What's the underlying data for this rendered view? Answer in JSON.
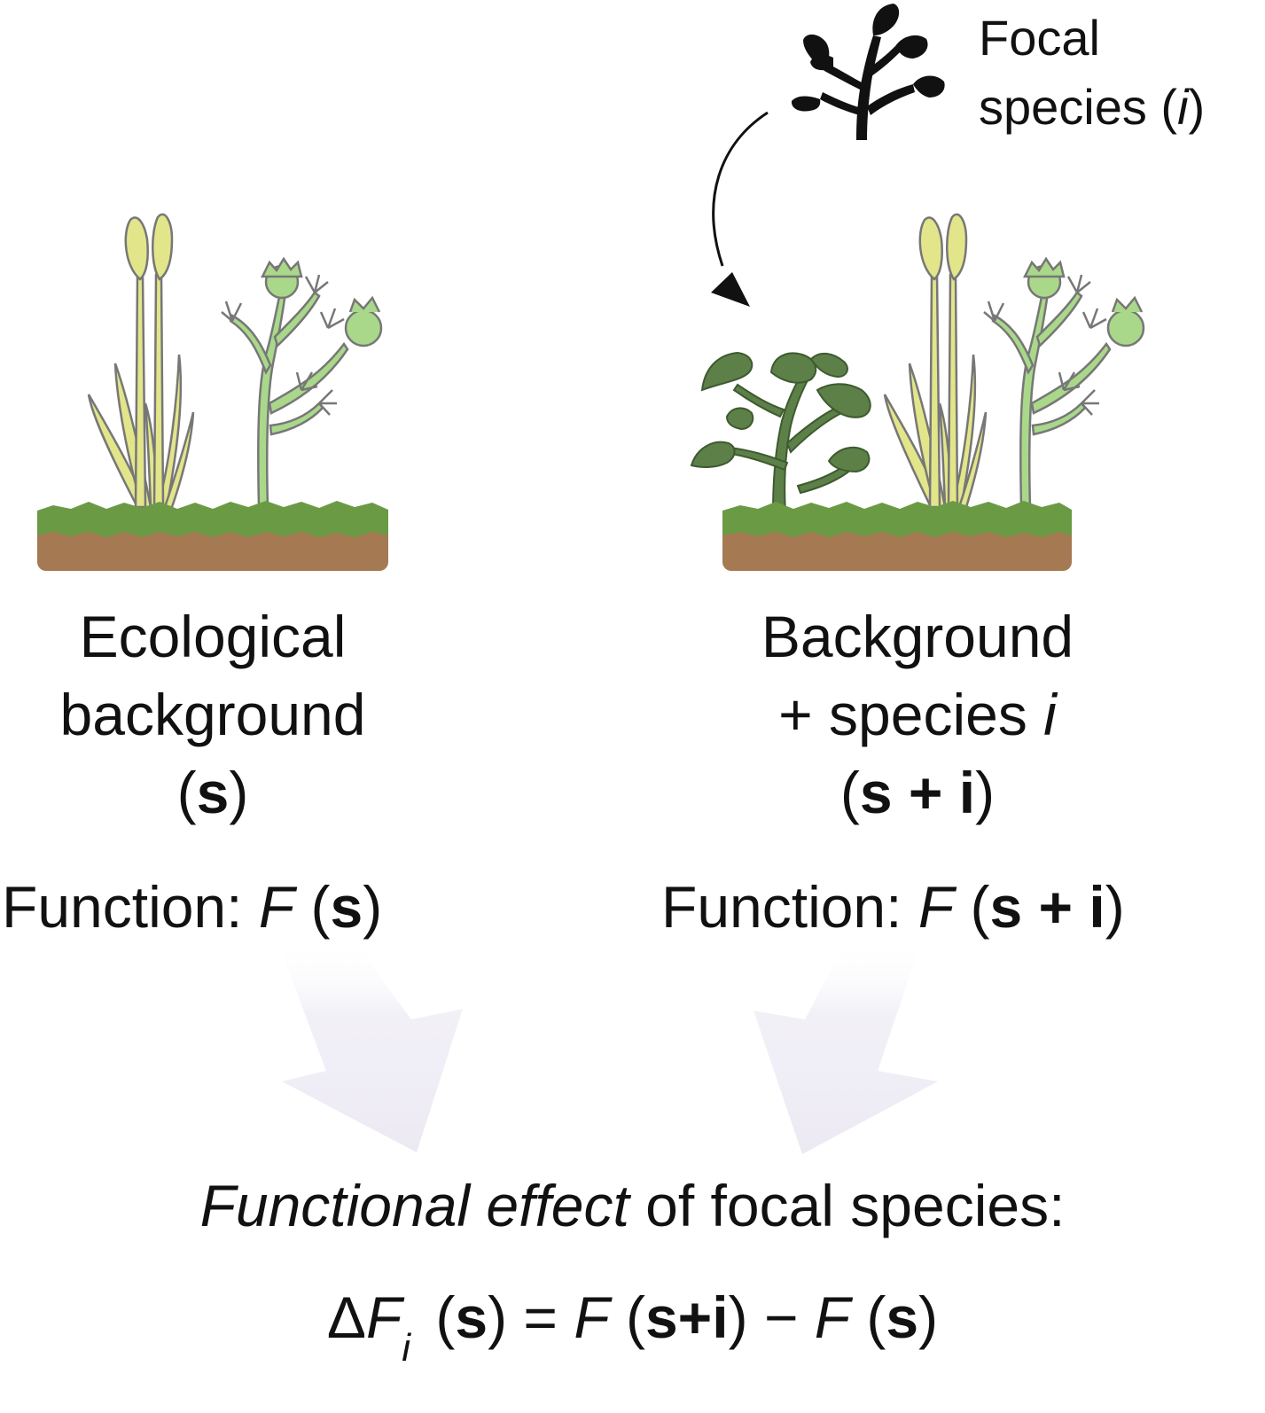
{
  "focal_label": {
    "line1": "Focal",
    "line2_prefix": "species (",
    "line2_italic": "i",
    "line2_suffix": ")"
  },
  "left_panel": {
    "line1": "Ecological",
    "line2": "background",
    "line3_open": "(",
    "line3_bold": "s",
    "line3_close": ")",
    "function_prefix": "Function: ",
    "function_italic": "F",
    "function_open": " (",
    "function_bold": "s",
    "function_close": ")"
  },
  "right_panel": {
    "line1": "Background",
    "line2_prefix": "+ species ",
    "line2_italic": "i",
    "line3_open": "(",
    "line3_bold": "s + i",
    "line3_close": ")",
    "function_prefix": "Function: ",
    "function_italic": "F",
    "function_open": " (",
    "function_bold": "s + i",
    "function_close": ")"
  },
  "effect": {
    "title_italic": "Functional effect",
    "title_rest": " of focal species:",
    "eq_delta": "ΔF",
    "eq_sub": "i",
    "eq_p1_open": " (",
    "eq_p1_bold": "s",
    "eq_p1_close": ") = ",
    "eq_f2": "F",
    "eq_p2_open": " (",
    "eq_p2_bold": "s+i",
    "eq_p2_close": ")  − ",
    "eq_f3": "F",
    "eq_p3_open": " (",
    "eq_p3_bold": "s",
    "eq_p3_close": ")"
  },
  "colors": {
    "soil": "#a57a52",
    "grass": "#6b9a44",
    "sedge": "#e2e58a",
    "herb": "#a9d88a",
    "focal_plant": "#5c8048",
    "arrow_fill": "#eeebf4"
  }
}
